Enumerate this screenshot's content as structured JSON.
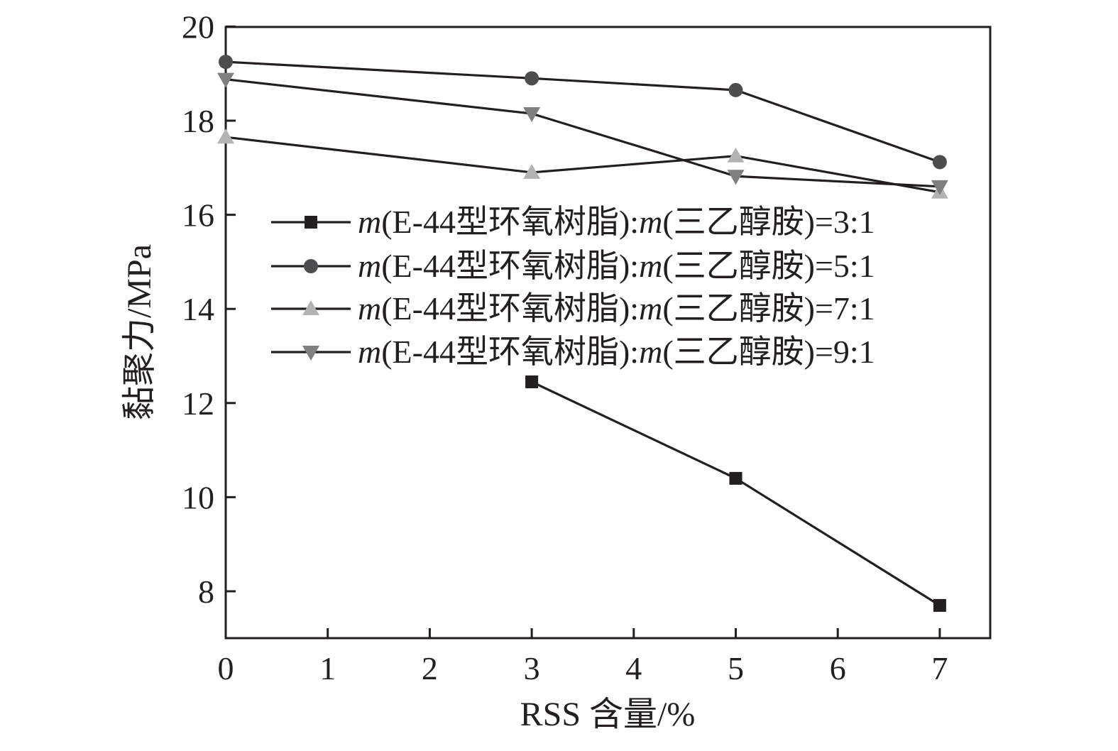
{
  "chart_data": {
    "type": "line",
    "xlabel": "RSS 含量/%",
    "ylabel": "黏聚力/MPa",
    "xlim": [
      0,
      7.5
    ],
    "ylim": [
      7,
      20
    ],
    "xticks": [
      0,
      1,
      2,
      3,
      4,
      5,
      6,
      7
    ],
    "yticks": [
      8,
      10,
      12,
      14,
      16,
      18,
      20
    ],
    "grid": false,
    "legend_position": "center-right",
    "series": [
      {
        "name": "m(E-44型环氧树脂):m(三乙醇胺)=3:1",
        "name_italic": "m",
        "name_parts": [
          "(E-44型环氧树脂):",
          "(三乙醇胺)=3:1"
        ],
        "marker": "square",
        "color": "#231f20",
        "x": [
          3,
          5,
          7
        ],
        "y": [
          12.45,
          10.4,
          7.7
        ]
      },
      {
        "name": "m(E-44型环氧树脂):m(三乙醇胺)=5:1",
        "name_italic": "m",
        "name_parts": [
          "(E-44型环氧树脂):",
          "(三乙醇胺)=5:1"
        ],
        "marker": "circle",
        "color": "#4d4d4f",
        "x": [
          0,
          3,
          5,
          7
        ],
        "y": [
          19.25,
          18.9,
          18.65,
          17.12
        ]
      },
      {
        "name": "m(E-44型环氧树脂):m(三乙醇胺)=7:1",
        "name_italic": "m",
        "name_parts": [
          "(E-44型环氧树脂):",
          "(三乙醇胺)=7:1"
        ],
        "marker": "triangle-up",
        "color": "#b3b3b3",
        "x": [
          0,
          3,
          5,
          7
        ],
        "y": [
          17.65,
          16.9,
          17.25,
          16.48
        ]
      },
      {
        "name": "m(E-44型环氧树脂):m(三乙醇胺)=9:1",
        "name_italic": "m",
        "name_parts": [
          "(E-44型环氧树脂):",
          "(三乙醇胺)=9:1"
        ],
        "marker": "triangle-down",
        "color": "#7f7f7f",
        "x": [
          0,
          3,
          5,
          7
        ],
        "y": [
          18.88,
          18.15,
          16.82,
          16.6
        ]
      }
    ]
  }
}
